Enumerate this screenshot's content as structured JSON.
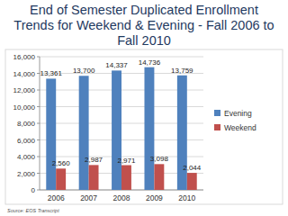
{
  "chart_data": {
    "type": "bar",
    "title": "End of Semester Duplicated Enrollment Trends for Weekend & Evening - Fall 2006 to Fall 2010",
    "annotations": [
      "Source: EOS Transcript"
    ],
    "categories": [
      "2006",
      "2007",
      "2008",
      "2009",
      "2010"
    ],
    "series": [
      {
        "name": "Evening",
        "color": "#4f81bd",
        "values": [
          13361,
          13700,
          14337,
          14736,
          13759
        ],
        "value_labels": [
          "13,361",
          "13,700",
          "14,337",
          "14,736",
          "13,759"
        ]
      },
      {
        "name": "Weekend",
        "color": "#c0504d",
        "values": [
          2560,
          2987,
          2971,
          3098,
          2044
        ],
        "value_labels": [
          "2,560",
          "2,987",
          "2,971",
          "3,098",
          "2,044"
        ]
      }
    ],
    "ylim": [
      0,
      16000
    ],
    "yticks": [
      0,
      {
        "value": 2000,
        "label": "2,000"
      },
      {
        "value": 4000,
        "label": "4,000"
      },
      {
        "value": 6000,
        "label": "6,000"
      },
      {
        "value": 8000,
        "label": "8,000"
      },
      {
        "value": 10000,
        "label": "10,000"
      },
      {
        "value": 12000,
        "label": "12,000"
      },
      {
        "value": 14000,
        "label": "14,000"
      },
      {
        "value": 16000,
        "label": "16,000"
      }
    ],
    "grid": true,
    "legend": "right",
    "data_labels": true
  }
}
